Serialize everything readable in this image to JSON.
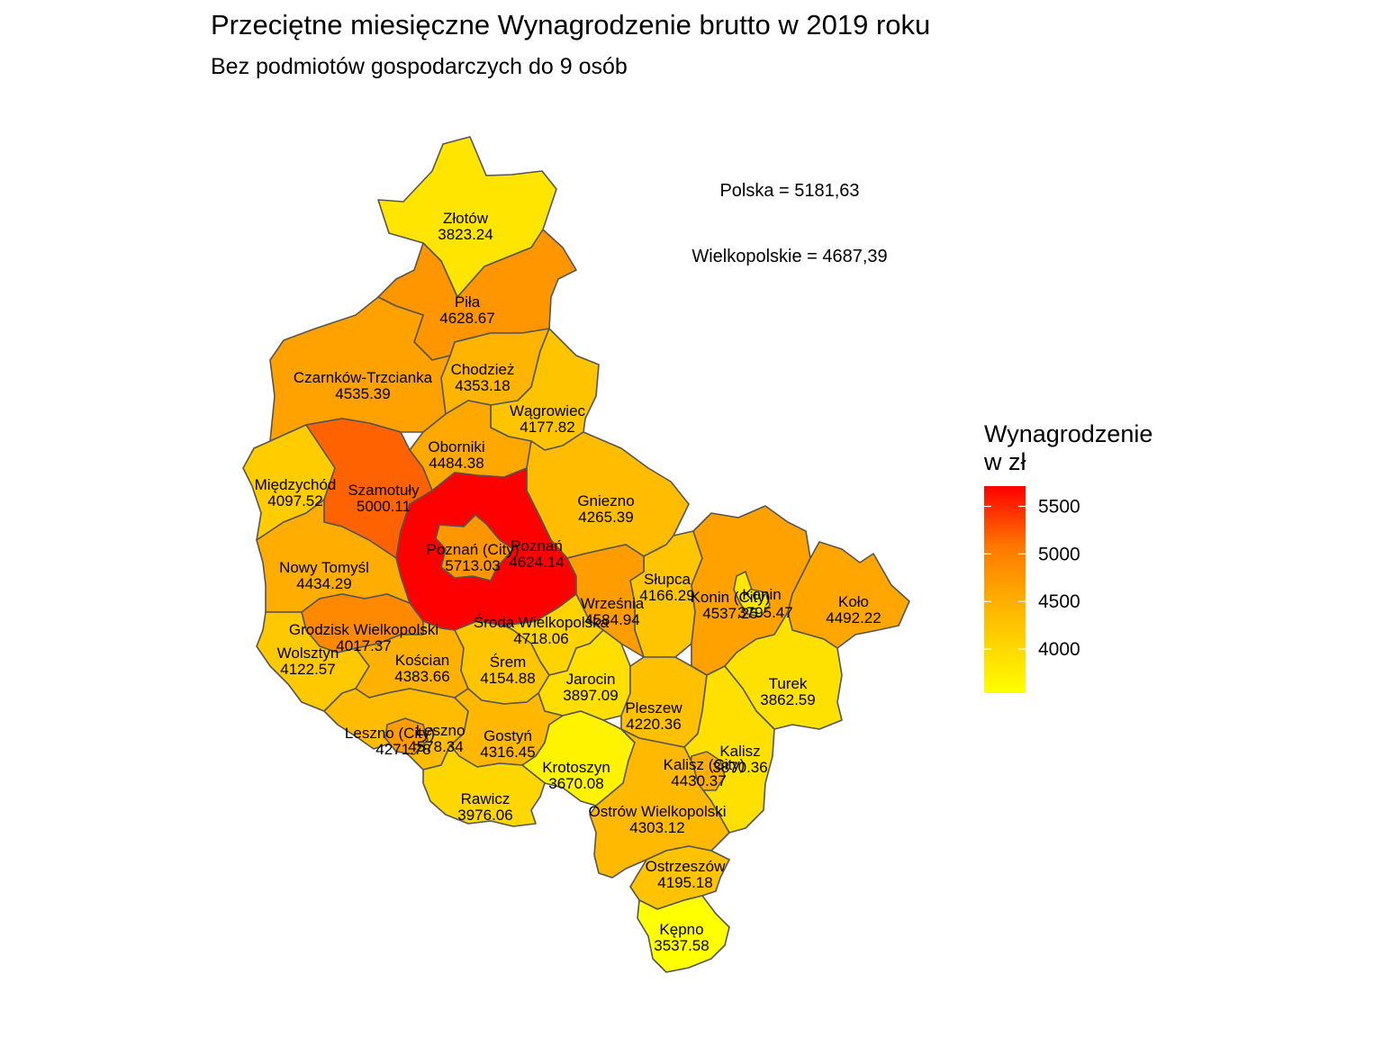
{
  "title": "Przeciętne miesięczne Wynagrodzenie brutto w 2019 roku",
  "subtitle": "Bez podmiotów gospodarczych do 9 osób",
  "annotations": {
    "polska": "Polska = 5181,63",
    "wielkopolskie": "Wielkopolskie = 4687,39"
  },
  "legend": {
    "title_line1": "Wynagrodzenie",
    "title_line2": "w zł",
    "ticks": [
      "5500",
      "5000",
      "4500",
      "4000"
    ],
    "tick_values": [
      5500,
      5000,
      4500,
      4000
    ],
    "min": 3537.58,
    "max": 5713.03,
    "color_low": "#ffff00",
    "color_mid": "#ffa500",
    "color_high": "#ff0000"
  },
  "chart_data": {
    "type": "choropleth",
    "regions": [
      {
        "name": "Złotów",
        "value": 3823.24
      },
      {
        "name": "Piła",
        "value": 4628.67
      },
      {
        "name": "Czarnków-Trzcianka",
        "value": 4535.39
      },
      {
        "name": "Chodzież",
        "value": 4353.18
      },
      {
        "name": "Wągrowiec",
        "value": 4177.82
      },
      {
        "name": "Oborniki",
        "value": 4484.38
      },
      {
        "name": "Międzychód",
        "value": 4097.52
      },
      {
        "name": "Szamotuły",
        "value": 5000.11
      },
      {
        "name": "Gniezno",
        "value": 4265.39
      },
      {
        "name": "Poznań (City)",
        "value": 5713.03
      },
      {
        "name": "Poznań",
        "value": 4624.14
      },
      {
        "name": "Nowy Tomyśl",
        "value": 4434.29
      },
      {
        "name": "Słupca",
        "value": 4166.29
      },
      {
        "name": "Konin (City)",
        "value": 4537.25
      },
      {
        "name": "Konin",
        "value": 3795.47
      },
      {
        "name": "Koło",
        "value": 4492.22
      },
      {
        "name": "Września",
        "value": 4584.94
      },
      {
        "name": "Grodzisk Wielkopolski",
        "value": 4017.37
      },
      {
        "name": "Środa Wielkopolska",
        "value": 4718.06
      },
      {
        "name": "Wolsztyn",
        "value": 4122.57
      },
      {
        "name": "Kościan",
        "value": 4383.66
      },
      {
        "name": "Śrem",
        "value": 4154.88
      },
      {
        "name": "Jarocin",
        "value": 3897.09
      },
      {
        "name": "Turek",
        "value": 3862.59
      },
      {
        "name": "Pleszew",
        "value": 4220.36
      },
      {
        "name": "Leszno (City)",
        "value": 4271.78
      },
      {
        "name": "Leszno",
        "value": 4578.34
      },
      {
        "name": "Gostyń",
        "value": 4316.45
      },
      {
        "name": "Kalisz",
        "value": 3870.36
      },
      {
        "name": "Kalisz (City)",
        "value": 4430.37
      },
      {
        "name": "Krotoszyn",
        "value": 3670.08
      },
      {
        "name": "Rawicz",
        "value": 3976.06
      },
      {
        "name": "Ostrów Wielkopolski",
        "value": 4303.12
      },
      {
        "name": "Ostrzeszów",
        "value": 4195.18
      },
      {
        "name": "Kępno",
        "value": 3537.58
      }
    ]
  }
}
